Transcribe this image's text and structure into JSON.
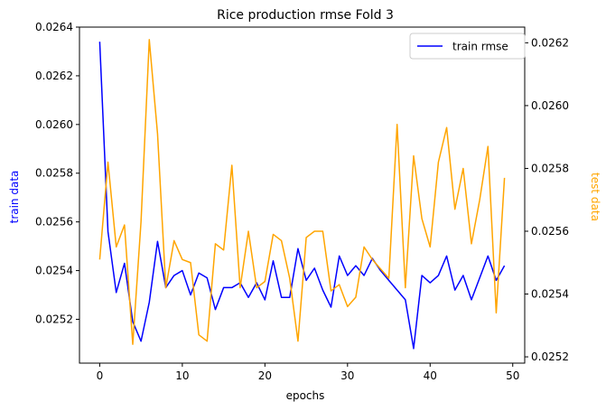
{
  "chart_data": {
    "type": "line",
    "title": "Rice production rmse Fold 3",
    "xlabel": "epochs",
    "ylabel_left": "train data",
    "ylabel_right": "test data",
    "xlim": [
      -2.45,
      51.45
    ],
    "ylim_left": [
      0.02502,
      0.0264
    ],
    "ylim_right": [
      0.02518,
      0.02625
    ],
    "x_ticks": [
      0,
      10,
      20,
      30,
      40,
      50
    ],
    "y_left_ticks": [
      0.0252,
      0.0254,
      0.0256,
      0.0258,
      0.026,
      0.0262,
      0.0264
    ],
    "y_right_ticks": [
      0.0252,
      0.0254,
      0.0256,
      0.0258,
      0.026,
      0.0262
    ],
    "legend": {
      "position": "top-right",
      "entries": [
        "train rmse"
      ]
    },
    "series": [
      {
        "name": "train rmse",
        "axis": "left",
        "color": "#0000ff",
        "x": [
          0,
          1,
          2,
          3,
          4,
          5,
          6,
          7,
          8,
          9,
          10,
          11,
          12,
          13,
          14,
          15,
          16,
          17,
          18,
          19,
          20,
          21,
          22,
          23,
          24,
          25,
          26,
          27,
          28,
          29,
          30,
          31,
          32,
          33,
          34,
          35,
          36,
          37,
          38,
          39,
          40,
          41,
          42,
          43,
          44,
          45,
          46,
          47,
          48,
          49
        ],
        "values": [
          0.02634,
          0.02556,
          0.02531,
          0.02543,
          0.02519,
          0.02511,
          0.02527,
          0.02552,
          0.02533,
          0.02538,
          0.0254,
          0.0253,
          0.02539,
          0.02537,
          0.02524,
          0.02533,
          0.02533,
          0.02535,
          0.02529,
          0.02535,
          0.02528,
          0.02544,
          0.02529,
          0.02529,
          0.02549,
          0.02536,
          0.02541,
          0.02532,
          0.02525,
          0.02546,
          0.02538,
          0.02542,
          0.02538,
          0.02545,
          0.0254,
          0.02536,
          0.02532,
          0.02528,
          0.02508,
          0.02538,
          0.02535,
          0.02538,
          0.02546,
          0.02532,
          0.02538,
          0.02528,
          0.02537,
          0.02546,
          0.02536,
          0.02542
        ]
      },
      {
        "name": "",
        "axis": "right",
        "color": "#ffa500",
        "x": [
          0,
          1,
          2,
          3,
          4,
          5,
          6,
          7,
          8,
          9,
          10,
          11,
          12,
          13,
          14,
          15,
          16,
          17,
          18,
          19,
          20,
          21,
          22,
          23,
          24,
          25,
          26,
          27,
          28,
          29,
          30,
          31,
          32,
          33,
          34,
          35,
          36,
          37,
          38,
          39,
          40,
          41,
          42,
          43,
          44,
          45,
          46,
          47,
          48,
          49
        ],
        "values": [
          0.02551,
          0.02582,
          0.02555,
          0.02562,
          0.02524,
          0.02563,
          0.02621,
          0.02591,
          0.02542,
          0.02557,
          0.02551,
          0.0255,
          0.02527,
          0.02525,
          0.02556,
          0.02554,
          0.02581,
          0.02542,
          0.0256,
          0.02542,
          0.02544,
          0.02559,
          0.02557,
          0.02545,
          0.02525,
          0.02558,
          0.0256,
          0.0256,
          0.02541,
          0.02543,
          0.02536,
          0.02539,
          0.02555,
          0.02551,
          0.02548,
          0.02545,
          0.02594,
          0.02542,
          0.02584,
          0.02564,
          0.02555,
          0.02582,
          0.02593,
          0.02567,
          0.0258,
          0.02556,
          0.0257,
          0.02587,
          0.02534,
          0.02577
        ]
      }
    ]
  }
}
